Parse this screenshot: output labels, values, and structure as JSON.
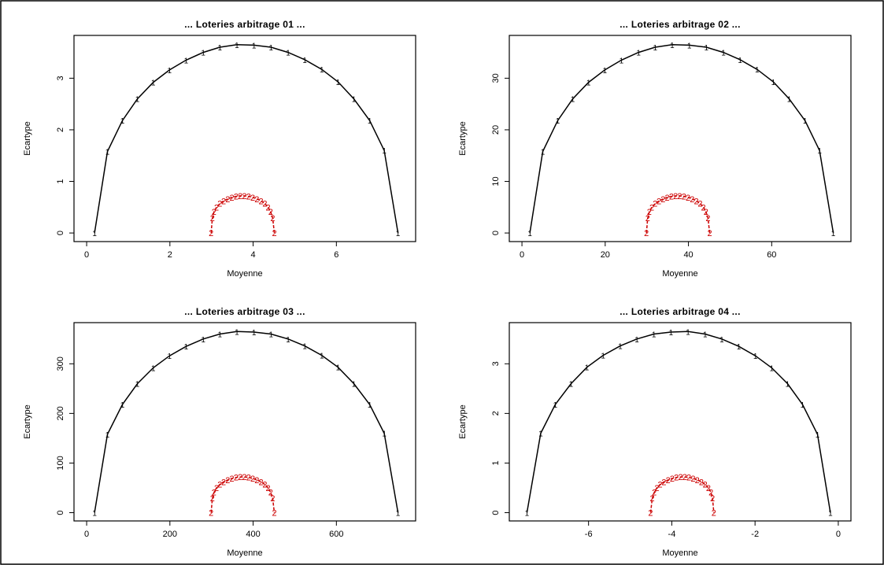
{
  "colors": {
    "series1": "#000000",
    "series2": "#cc0000"
  },
  "chart_data": [
    {
      "type": "line",
      "title": "... Loteries arbitrage 01 ...",
      "xlabel": "Moyenne",
      "ylabel": "Ecartype",
      "xlim": [
        0,
        7.6
      ],
      "ylim": [
        0,
        3.7
      ],
      "xticks": [
        "0",
        "2",
        "4",
        "6"
      ],
      "xtick_values": [
        0,
        2,
        4,
        6
      ],
      "yticks": [
        "0",
        "1",
        "2",
        "3"
      ],
      "ytick_values": [
        0,
        1,
        2,
        3
      ],
      "series": [
        {
          "marker": "1",
          "style": "solid",
          "x": [
            0.19,
            0.5,
            0.86,
            1.22,
            1.6,
            1.99,
            2.39,
            2.8,
            3.2,
            3.61,
            4.02,
            4.43,
            4.84,
            5.24,
            5.65,
            6.04,
            6.42,
            6.8,
            7.15,
            7.48
          ],
          "y": [
            0.0,
            1.58,
            2.18,
            2.6,
            2.92,
            3.16,
            3.35,
            3.5,
            3.6,
            3.65,
            3.64,
            3.6,
            3.5,
            3.36,
            3.17,
            2.93,
            2.6,
            2.18,
            1.6,
            0.0
          ]
        },
        {
          "marker": "2",
          "style": "dashed",
          "x": [
            2.99,
            3.02,
            3.06,
            3.12,
            3.2,
            3.29,
            3.39,
            3.49,
            3.59,
            3.69,
            3.79,
            3.89,
            3.99,
            4.09,
            4.19,
            4.28,
            4.36,
            4.42,
            4.47,
            4.51
          ],
          "y": [
            0.0,
            0.29,
            0.41,
            0.5,
            0.57,
            0.62,
            0.66,
            0.69,
            0.71,
            0.72,
            0.72,
            0.71,
            0.69,
            0.66,
            0.62,
            0.57,
            0.5,
            0.41,
            0.29,
            0.0
          ]
        }
      ]
    },
    {
      "type": "line",
      "title": "... Loteries arbitrage 02 ...",
      "xlabel": "Moyenne",
      "ylabel": "Ecartype",
      "xlim": [
        0,
        76
      ],
      "ylim": [
        0,
        37
      ],
      "xticks": [
        "0",
        "20",
        "40",
        "60"
      ],
      "xtick_values": [
        0,
        20,
        40,
        60
      ],
      "yticks": [
        "0",
        "10",
        "20",
        "30"
      ],
      "ytick_values": [
        0,
        10,
        20,
        30
      ],
      "series": [
        {
          "marker": "1",
          "style": "solid",
          "x": [
            1.9,
            5.0,
            8.6,
            12.2,
            16.0,
            19.9,
            23.9,
            28.0,
            32.0,
            36.1,
            40.2,
            44.3,
            48.4,
            52.4,
            56.5,
            60.4,
            64.2,
            68.0,
            71.5,
            74.8
          ],
          "y": [
            0.0,
            15.8,
            21.8,
            26.0,
            29.2,
            31.6,
            33.5,
            35.0,
            36.0,
            36.5,
            36.4,
            36.0,
            35.0,
            33.6,
            31.7,
            29.3,
            26.0,
            21.8,
            16.0,
            0.0
          ]
        },
        {
          "marker": "2",
          "style": "dashed",
          "x": [
            29.9,
            30.2,
            30.6,
            31.2,
            32.0,
            32.9,
            33.9,
            34.9,
            35.9,
            36.9,
            37.9,
            38.9,
            39.9,
            40.9,
            41.9,
            42.8,
            43.6,
            44.2,
            44.7,
            45.1
          ],
          "y": [
            0.0,
            2.9,
            4.1,
            5.0,
            5.7,
            6.2,
            6.6,
            6.9,
            7.1,
            7.2,
            7.2,
            7.1,
            6.9,
            6.6,
            6.2,
            5.7,
            5.0,
            4.1,
            2.9,
            0.0
          ]
        }
      ]
    },
    {
      "type": "line",
      "title": "... Loteries arbitrage 03 ...",
      "xlabel": "Moyenne",
      "ylabel": "Ecartype",
      "xlim": [
        0,
        760
      ],
      "ylim": [
        0,
        370
      ],
      "xticks": [
        "0",
        "200",
        "400",
        "600"
      ],
      "xtick_values": [
        0,
        200,
        400,
        600
      ],
      "yticks": [
        "0",
        "100",
        "200",
        "300"
      ],
      "ytick_values": [
        0,
        100,
        200,
        300
      ],
      "series": [
        {
          "marker": "1",
          "style": "solid",
          "x": [
            19,
            50,
            86,
            122,
            160,
            199,
            239,
            280,
            320,
            361,
            402,
            443,
            484,
            524,
            565,
            604,
            642,
            680,
            715,
            748
          ],
          "y": [
            0,
            158,
            218,
            260,
            292,
            316,
            335,
            350,
            360,
            365,
            364,
            360,
            350,
            336,
            317,
            293,
            260,
            218,
            160,
            0
          ]
        },
        {
          "marker": "2",
          "style": "dashed",
          "x": [
            299,
            302,
            306,
            312,
            320,
            329,
            339,
            349,
            359,
            369,
            379,
            389,
            399,
            409,
            419,
            428,
            436,
            442,
            447,
            451
          ],
          "y": [
            0,
            29,
            41,
            50,
            57,
            62,
            66,
            69,
            71,
            72,
            72,
            71,
            69,
            66,
            62,
            57,
            50,
            41,
            29,
            0
          ]
        }
      ]
    },
    {
      "type": "line",
      "title": "... Loteries arbitrage 04 ...",
      "xlabel": "Moyenne",
      "ylabel": "Ecartype",
      "xlim": [
        -7.6,
        0
      ],
      "ylim": [
        0,
        3.7
      ],
      "xticks": [
        "-6",
        "-4",
        "-2",
        "0"
      ],
      "xtick_values": [
        -6,
        -4,
        -2,
        0
      ],
      "yticks": [
        "0",
        "1",
        "2",
        "3"
      ],
      "ytick_values": [
        0,
        1,
        2,
        3
      ],
      "series": [
        {
          "marker": "1",
          "style": "solid",
          "x": [
            -7.48,
            -7.15,
            -6.8,
            -6.42,
            -6.04,
            -5.65,
            -5.24,
            -4.84,
            -4.43,
            -4.02,
            -3.61,
            -3.2,
            -2.8,
            -2.39,
            -1.99,
            -1.6,
            -1.22,
            -0.86,
            -0.5,
            -0.19
          ],
          "y": [
            0.0,
            1.6,
            2.18,
            2.6,
            2.93,
            3.17,
            3.36,
            3.5,
            3.6,
            3.64,
            3.65,
            3.6,
            3.5,
            3.35,
            3.16,
            2.92,
            2.6,
            2.18,
            1.58,
            0.0
          ]
        },
        {
          "marker": "2",
          "style": "dashed",
          "x": [
            -4.51,
            -4.47,
            -4.42,
            -4.36,
            -4.28,
            -4.19,
            -4.09,
            -3.99,
            -3.89,
            -3.79,
            -3.69,
            -3.59,
            -3.49,
            -3.39,
            -3.29,
            -3.2,
            -3.12,
            -3.06,
            -3.02,
            -2.99
          ],
          "y": [
            0.0,
            0.29,
            0.41,
            0.5,
            0.57,
            0.62,
            0.66,
            0.69,
            0.71,
            0.72,
            0.72,
            0.71,
            0.69,
            0.66,
            0.62,
            0.57,
            0.5,
            0.41,
            0.29,
            0.0
          ]
        }
      ]
    }
  ]
}
